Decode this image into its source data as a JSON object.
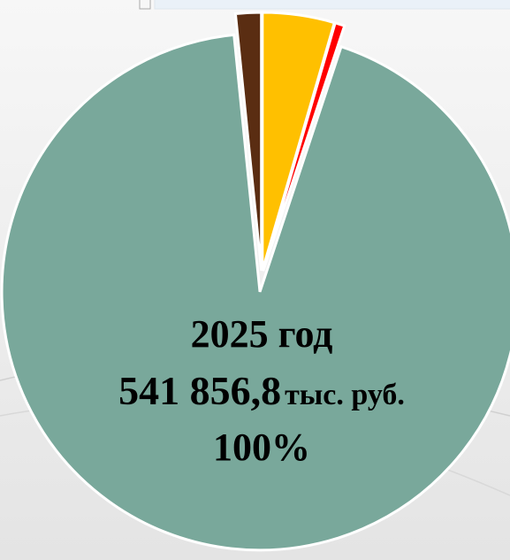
{
  "chart_data": {
    "type": "pie",
    "values": [
      4.5,
      0.6,
      93.3,
      1.6
    ],
    "colors": [
      "#ffc000",
      "#ff0000",
      "#79a89b",
      "#5a2d12"
    ],
    "annotations": [
      "2025 год",
      "541 856,8",
      "тыс. руб.",
      "100%"
    ]
  }
}
